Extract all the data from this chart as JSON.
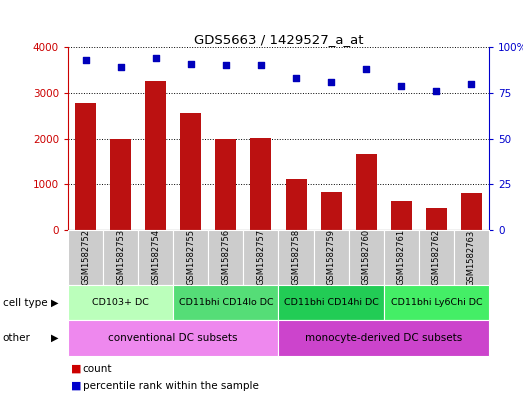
{
  "title": "GDS5663 / 1429527_a_at",
  "samples": [
    "GSM1582752",
    "GSM1582753",
    "GSM1582754",
    "GSM1582755",
    "GSM1582756",
    "GSM1582757",
    "GSM1582758",
    "GSM1582759",
    "GSM1582760",
    "GSM1582761",
    "GSM1582762",
    "GSM1582763"
  ],
  "counts": [
    2780,
    1990,
    3250,
    2550,
    2000,
    2020,
    1120,
    830,
    1660,
    640,
    490,
    800
  ],
  "percentiles": [
    93,
    89,
    94,
    91,
    90,
    90,
    83,
    81,
    88,
    79,
    76,
    80
  ],
  "ylim_left": [
    0,
    4000
  ],
  "ylim_right": [
    0,
    100
  ],
  "yticks_left": [
    0,
    1000,
    2000,
    3000,
    4000
  ],
  "yticks_right": [
    0,
    25,
    50,
    75,
    100
  ],
  "cell_type_groups": [
    {
      "label": "CD103+ DC",
      "start": 0,
      "end": 3,
      "color": "#bbffbb"
    },
    {
      "label": "CD11bhi CD14lo DC",
      "start": 3,
      "end": 6,
      "color": "#55dd77"
    },
    {
      "label": "CD11bhi CD14hi DC",
      "start": 6,
      "end": 9,
      "color": "#22cc55"
    },
    {
      "label": "CD11bhi Ly6Chi DC",
      "start": 9,
      "end": 12,
      "color": "#44ee66"
    }
  ],
  "other_groups": [
    {
      "label": "conventional DC subsets",
      "start": 0,
      "end": 6,
      "color": "#ee88ee"
    },
    {
      "label": "monocyte-derived DC subsets",
      "start": 6,
      "end": 12,
      "color": "#cc44cc"
    }
  ],
  "bar_color": "#bb1111",
  "dot_color": "#0000bb",
  "label_color_left": "#cc0000",
  "label_color_right": "#0000cc",
  "tick_bg_color": "#cccccc",
  "legend_count_color": "#cc0000",
  "legend_pct_color": "#0000cc",
  "border_color": "#888888"
}
